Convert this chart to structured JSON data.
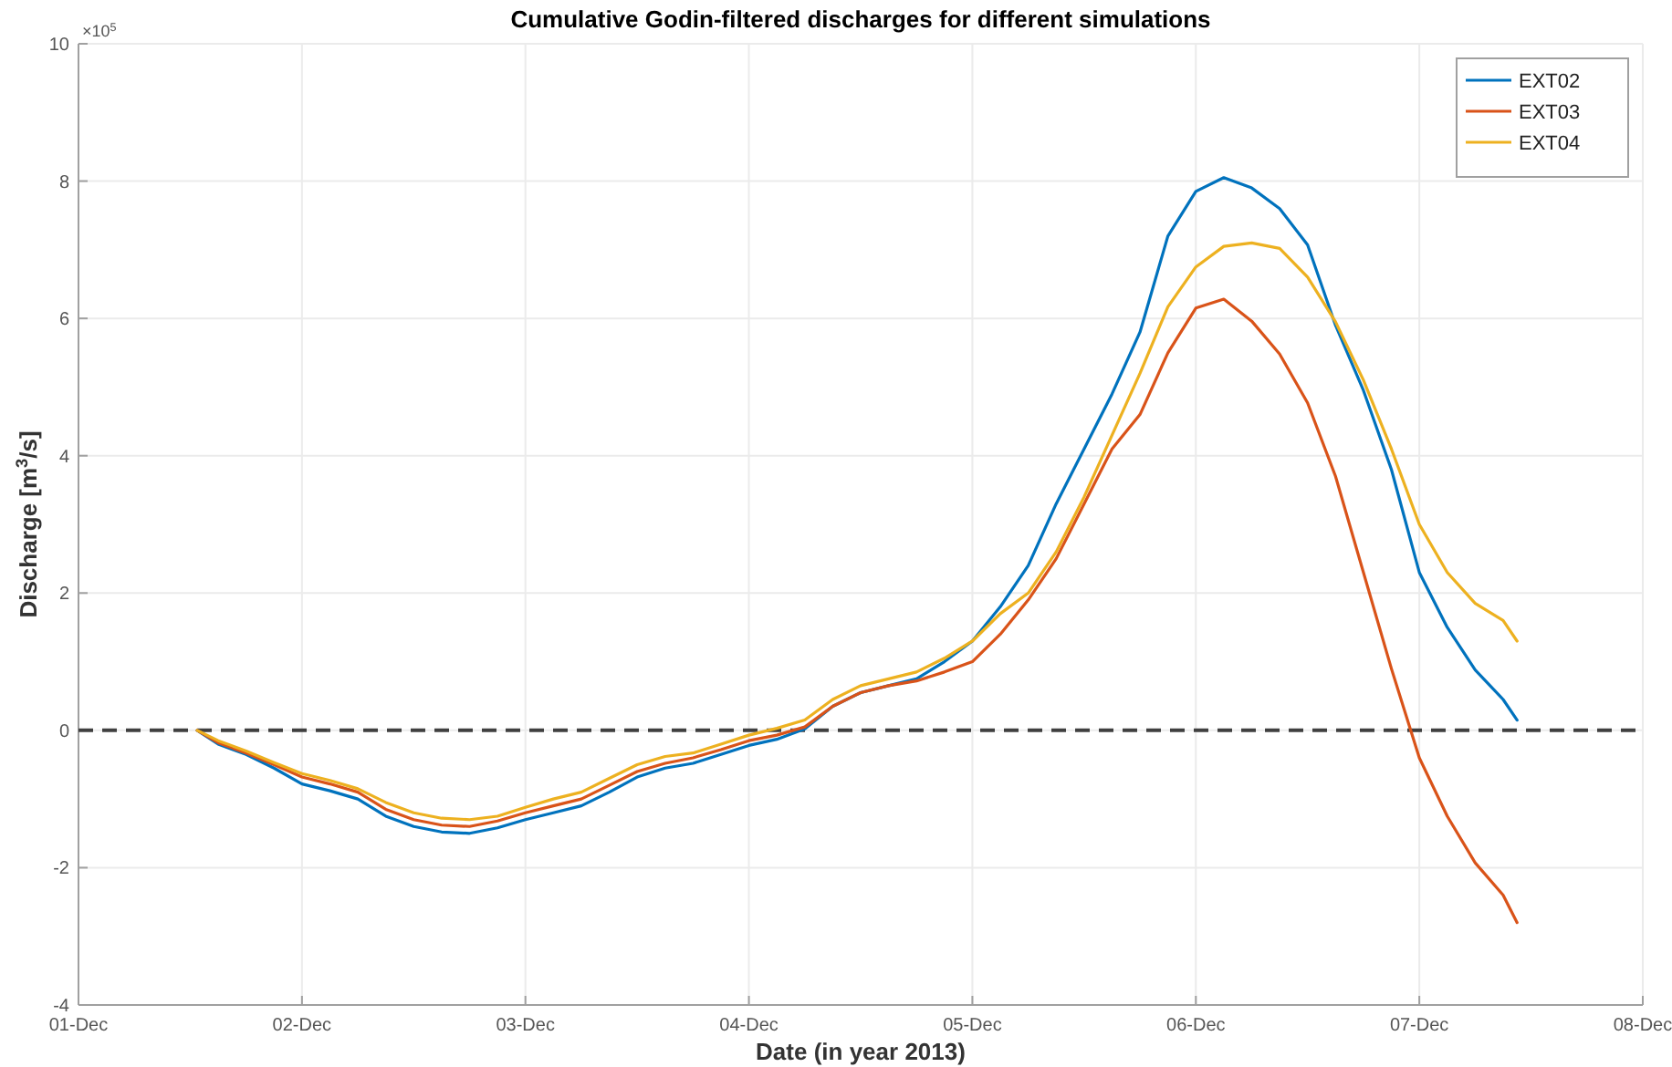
{
  "chart_data": {
    "type": "line",
    "title": "Cumulative Godin-filtered discharges for different simulations",
    "xlabel": "Date (in year 2013)",
    "ylabel": "Discharge [m$^{3}$/s]",
    "annotations": [
      "×10$^{5}$"
    ],
    "x": [
      "2013-12-01T12:45",
      "2013-12-01T15:00",
      "2013-12-01T18:00",
      "2013-12-01T21:00",
      "2013-12-02T00:00",
      "2013-12-02T03:00",
      "2013-12-02T06:00",
      "2013-12-02T09:00",
      "2013-12-02T12:00",
      "2013-12-02T15:00",
      "2013-12-02T18:00",
      "2013-12-02T21:00",
      "2013-12-03T00:00",
      "2013-12-03T03:00",
      "2013-12-03T06:00",
      "2013-12-03T09:00",
      "2013-12-03T12:00",
      "2013-12-03T15:00",
      "2013-12-03T18:00",
      "2013-12-03T21:00",
      "2013-12-04T00:00",
      "2013-12-04T03:00",
      "2013-12-04T06:00",
      "2013-12-04T09:00",
      "2013-12-04T12:00",
      "2013-12-04T15:00",
      "2013-12-04T18:00",
      "2013-12-04T21:00",
      "2013-12-05T00:00",
      "2013-12-05T03:00",
      "2013-12-05T06:00",
      "2013-12-05T09:00",
      "2013-12-05T12:00",
      "2013-12-05T15:00",
      "2013-12-05T18:00",
      "2013-12-05T21:00",
      "2013-12-06T00:00",
      "2013-12-06T03:00",
      "2013-12-06T06:00",
      "2013-12-06T09:00",
      "2013-12-06T12:00",
      "2013-12-06T15:00",
      "2013-12-06T18:00",
      "2013-12-06T21:00",
      "2013-12-07T00:00",
      "2013-12-07T03:00",
      "2013-12-07T06:00",
      "2013-12-07T09:00",
      "2013-12-07T10:30"
    ],
    "series": [
      {
        "name": "EXT02",
        "color": "#0072bd",
        "values": [
          0,
          -0.2,
          -0.35,
          -0.55,
          -0.78,
          -0.88,
          -1.0,
          -1.25,
          -1.4,
          -1.48,
          -1.5,
          -1.42,
          -1.3,
          -1.2,
          -1.1,
          -0.9,
          -0.68,
          -0.55,
          -0.48,
          -0.35,
          -0.22,
          -0.13,
          0.02,
          0.35,
          0.55,
          0.65,
          0.75,
          1.0,
          1.3,
          1.8,
          2.4,
          3.3,
          4.1,
          4.9,
          5.8,
          7.2,
          7.85,
          8.05,
          7.9,
          7.6,
          7.07,
          5.9,
          4.95,
          3.8,
          2.3,
          1.5,
          0.88,
          0.45,
          0.15
        ]
      },
      {
        "name": "EXT03",
        "color": "#d95319",
        "values": [
          0,
          -0.18,
          -0.33,
          -0.5,
          -0.68,
          -0.78,
          -0.9,
          -1.15,
          -1.3,
          -1.38,
          -1.4,
          -1.32,
          -1.2,
          -1.1,
          -1.0,
          -0.8,
          -0.6,
          -0.48,
          -0.4,
          -0.28,
          -0.15,
          -0.07,
          0.05,
          0.35,
          0.55,
          0.65,
          0.72,
          0.85,
          1.0,
          1.4,
          1.9,
          2.5,
          3.3,
          4.1,
          4.6,
          5.5,
          6.15,
          6.28,
          5.96,
          5.48,
          4.77,
          3.7,
          2.3,
          0.9,
          -0.4,
          -1.25,
          -1.93,
          -2.4,
          -2.8
        ]
      },
      {
        "name": "EXT04",
        "color": "#edb120",
        "values": [
          0,
          -0.15,
          -0.3,
          -0.47,
          -0.63,
          -0.73,
          -0.85,
          -1.05,
          -1.2,
          -1.28,
          -1.3,
          -1.25,
          -1.12,
          -1.0,
          -0.9,
          -0.7,
          -0.5,
          -0.38,
          -0.33,
          -0.2,
          -0.07,
          0.03,
          0.15,
          0.45,
          0.65,
          0.75,
          0.85,
          1.05,
          1.3,
          1.7,
          2.0,
          2.6,
          3.4,
          4.3,
          5.2,
          6.17,
          6.75,
          7.05,
          7.1,
          7.02,
          6.6,
          5.95,
          5.1,
          4.1,
          3.0,
          2.3,
          1.85,
          1.6,
          1.3
        ]
      }
    ],
    "xlim": [
      "2013-12-01",
      "2013-12-08"
    ],
    "xticks": [
      {
        "value": "2013-12-01",
        "label": "01-Dec"
      },
      {
        "value": "2013-12-02",
        "label": "02-Dec"
      },
      {
        "value": "2013-12-03",
        "label": "03-Dec"
      },
      {
        "value": "2013-12-04",
        "label": "04-Dec"
      },
      {
        "value": "2013-12-05",
        "label": "05-Dec"
      },
      {
        "value": "2013-12-06",
        "label": "06-Dec"
      },
      {
        "value": "2013-12-07",
        "label": "07-Dec"
      },
      {
        "value": "2013-12-08",
        "label": "08-Dec"
      }
    ],
    "ylim": [
      -4,
      10
    ],
    "yticks": [
      -4,
      -2,
      0,
      2,
      4,
      6,
      8,
      10
    ],
    "ref_lines": [
      {
        "axis": "y",
        "value": 0,
        "color": "#404040",
        "line_style": "dashed"
      }
    ],
    "grid": true,
    "legend": "top right",
    "line_style": "solid",
    "marker": "none"
  }
}
